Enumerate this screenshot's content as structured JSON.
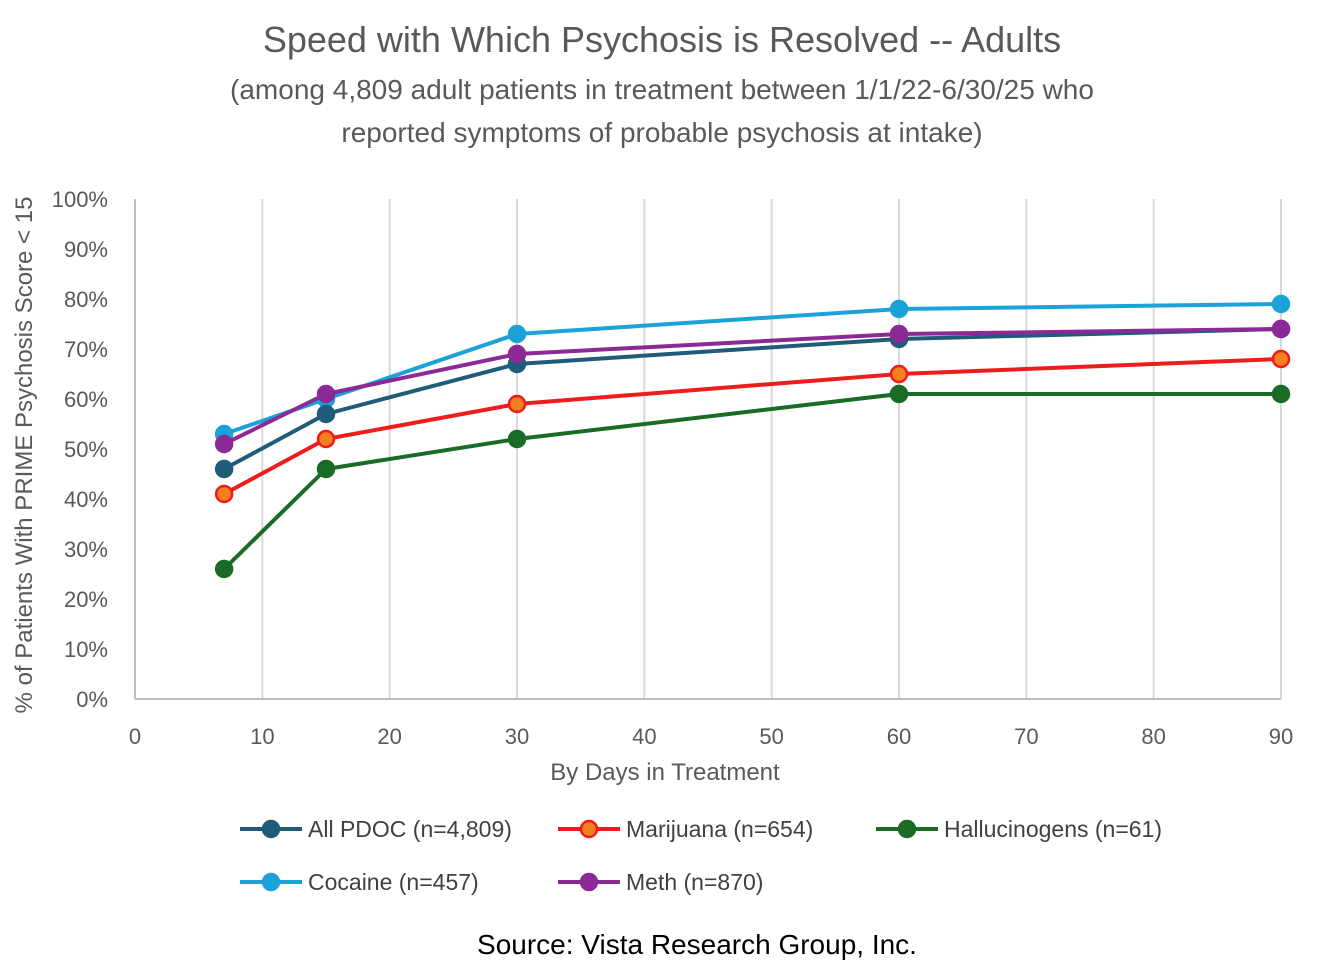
{
  "chart_data": {
    "type": "line",
    "title": "Speed with Which Psychosis is Resolved -- Adults",
    "subtitle_lines": [
      "(among 4,809 adult patients in treatment between 1/1/22-6/30/25 who",
      "reported symptoms of probable psychosis at intake)"
    ],
    "xlabel": "By Days in Treatment",
    "ylabel": "% of Patients With PRIME Psychosis Score < 15",
    "xlim": [
      0,
      90
    ],
    "ylim": [
      0,
      100
    ],
    "x_ticks": [
      0,
      10,
      20,
      30,
      40,
      50,
      60,
      70,
      80,
      90
    ],
    "y_ticks": [
      0,
      10,
      20,
      30,
      40,
      50,
      60,
      70,
      80,
      90,
      100
    ],
    "y_tick_labels": [
      "0%",
      "10%",
      "20%",
      "30%",
      "40%",
      "50%",
      "60%",
      "70%",
      "80%",
      "90%",
      "100%"
    ],
    "grid": "vertical",
    "legend_position": "bottom",
    "x": [
      7,
      15,
      30,
      60,
      90
    ],
    "series": [
      {
        "name": "All PDOC (n=4,809)",
        "color": "#1f5c7a",
        "values": [
          46,
          57,
          67,
          72,
          74
        ]
      },
      {
        "name": "Marijuana (n=654)",
        "color": "#ee1c1c",
        "marker_fill": "#f5801f",
        "values": [
          41,
          52,
          59,
          65,
          68
        ]
      },
      {
        "name": "Hallucinogens (n=61)",
        "color": "#1a6b26",
        "values": [
          26,
          46,
          52,
          61,
          61
        ]
      },
      {
        "name": "Cocaine (n=457)",
        "color": "#1aa2d9",
        "values": [
          53,
          60,
          73,
          78,
          79
        ]
      },
      {
        "name": "Meth (n=870)",
        "color": "#8b2a96",
        "values": [
          51,
          61,
          69,
          73,
          74
        ]
      }
    ],
    "draw_order": [
      3,
      0,
      4,
      1,
      2
    ]
  },
  "source": "Source:  Vista Research Group, Inc."
}
